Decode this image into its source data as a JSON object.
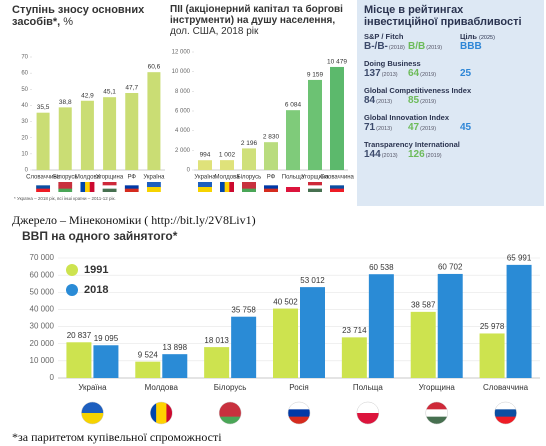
{
  "chart_data": [
    {
      "type": "bar",
      "title": "Ступінь зносу основних засобів*,",
      "subtitle": "%",
      "categories": [
        "Словаччина",
        "Білорусь",
        "Молдова",
        "Угорщина",
        "РФ",
        "Україна"
      ],
      "values": [
        35.5,
        38.8,
        42.9,
        45.1,
        47.7,
        60.6
      ],
      "value_labels": [
        "35,5",
        "38,8",
        "42,9",
        "45,1",
        "47,7",
        "60,6"
      ],
      "color": "#cadd74",
      "ylim": [
        0,
        70
      ],
      "yticks": [
        0,
        10,
        20,
        30,
        40,
        50,
        60,
        70
      ],
      "note": "* Україна – 2018 рік, всі інші країни – 2011-12 рік."
    },
    {
      "type": "bar",
      "title": "ПІІ (акціонерний капітал та боргові інструменти) на душу населення,",
      "subtitle": "дол. США, 2018 рік",
      "categories": [
        "Україна",
        "Молдова",
        "Білорусь",
        "РФ",
        "Польща",
        "Угорщина",
        "Словаччина"
      ],
      "values": [
        994,
        1002,
        2196,
        2830,
        6084,
        9159,
        10479
      ],
      "value_labels": [
        "994",
        "1 002",
        "2 196",
        "2 830",
        "6 084",
        "9 159",
        "10 479"
      ],
      "colors": [
        "#dfe27a",
        "#dfe27a",
        "#cfe07a",
        "#b9dc7e",
        "#7fcb7a",
        "#6cc273",
        "#5cb96c"
      ],
      "ylim": [
        0,
        12000
      ],
      "yticks": [
        0,
        {
          "value": 2000,
          "label": "2 000"
        },
        {
          "value": 4000,
          "label": "4 000"
        },
        {
          "value": 6000,
          "label": "6 000"
        },
        {
          "value": 8000,
          "label": "8 000"
        },
        {
          "value": 10000,
          "label": "10 000"
        },
        {
          "value": 12000,
          "label": "12 000"
        }
      ]
    },
    {
      "type": "bar",
      "title": "ВВП на одного зайнятого*",
      "categories": [
        "Україна",
        "Молдова",
        "Білорусь",
        "Росія",
        "Польща",
        "Угорщина",
        "Словаччина"
      ],
      "series": [
        {
          "name": "1991",
          "color": "#cde34f",
          "values": [
            20837,
            9524,
            18013,
            40502,
            23714,
            38587,
            25978
          ],
          "value_labels": [
            "20 837",
            "9 524",
            "18 013",
            "40 502",
            "23 714",
            "38 587",
            "25 978"
          ]
        },
        {
          "name": "2018",
          "color": "#2a8bd6",
          "values": [
            19095,
            13898,
            35758,
            53012,
            60538,
            60702,
            65991
          ],
          "value_labels": [
            "19 095",
            "13 898",
            "35 758",
            "53 012",
            "60 538",
            "60 702",
            "65 991"
          ]
        }
      ],
      "ylim": [
        0,
        70000
      ],
      "yticks": [
        0,
        {
          "value": 10000,
          "label": "10 000"
        },
        {
          "value": 20000,
          "label": "20 000"
        },
        {
          "value": 30000,
          "label": "30 000"
        },
        {
          "value": 40000,
          "label": "40 000"
        },
        {
          "value": 50000,
          "label": "50 000"
        },
        {
          "value": 60000,
          "label": "60 000"
        },
        {
          "value": 70000,
          "label": "70 000"
        }
      ],
      "grid": true,
      "legend": "upper left",
      "note": "*за паритетом купівельної спроможності"
    }
  ],
  "ratings": {
    "title": "Місце в рейтингах інвестиційної привабливості",
    "target_header": "Ціль",
    "target_year": "(2025)",
    "rows": [
      {
        "name": "S&P / Fitch",
        "entries": [
          {
            "text": "B-/B-",
            "year": "(2018)"
          },
          {
            "text": "B/B",
            "year": "(2019)"
          }
        ],
        "target": "BBB"
      },
      {
        "name": "Doing Business",
        "entries": [
          {
            "text": 137,
            "year": "(2013)"
          },
          {
            "text": 64,
            "year": "(2019)"
          }
        ],
        "target": 25
      },
      {
        "name": "Global Competitiveness Index",
        "entries": [
          {
            "text": 84,
            "year": "(2013)"
          },
          {
            "text": 85,
            "year": "(2019)"
          }
        ]
      },
      {
        "name": "Global Innovation Index",
        "entries": [
          {
            "text": 71,
            "year": "(2013)"
          },
          {
            "text": 47,
            "year": "(2019)"
          }
        ],
        "target": 45
      },
      {
        "name": "Transparency International",
        "entries": [
          {
            "text": 144,
            "year": "(2013)"
          },
          {
            "text": 126,
            "year": "(2019)"
          }
        ]
      }
    ]
  },
  "source": "Джерело – Мінекономіки ( http://bit.ly/2V8Liv1)"
}
